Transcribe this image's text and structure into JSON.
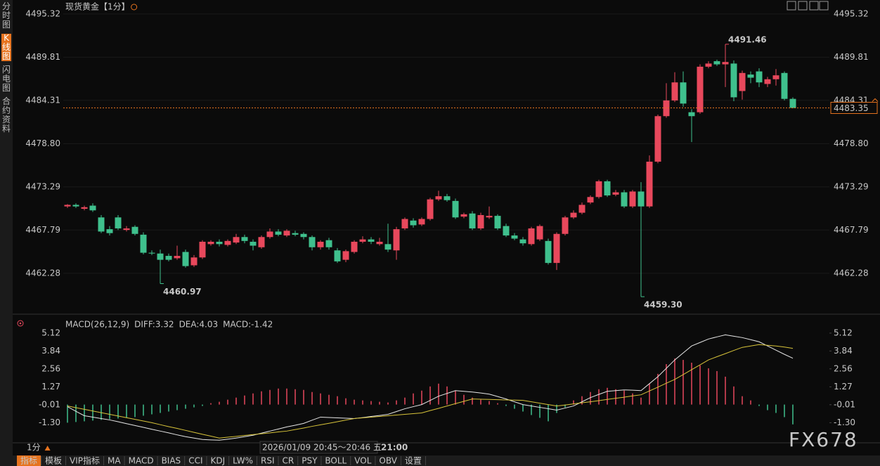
{
  "sidebar": [
    "分时图",
    "K线图",
    "闪电图",
    "合约资料"
  ],
  "chart_data": [
    {
      "type": "candlestick",
      "title": "现货黄金",
      "interval": "【1分】",
      "up_color": "#e8485c",
      "down_color": "#3fc08d",
      "ylim": [
        4457.7,
        4496.2
      ],
      "yticks": [
        4462.28,
        4467.79,
        4473.29,
        {
          "value": 4478.8,
          "label": "4478.80"
        },
        4484.31,
        4489.81,
        4495.32
      ],
      "grid": true,
      "last_price": 4483.35,
      "annotations": {
        "values": [
          4491.46,
          4460.97,
          4459.3
        ],
        "value_labels": [
          "4491.46",
          "4460.97",
          "4459.30"
        ]
      },
      "candles": [
        [
          4470.8,
          4471.1,
          4470.6,
          4471.0
        ],
        [
          4471.0,
          4471.2,
          4470.6,
          4470.8
        ],
        [
          4470.5,
          4470.9,
          4470.3,
          4470.7
        ],
        [
          4470.9,
          4471.2,
          4470.1,
          4470.3
        ],
        [
          4469.4,
          4469.7,
          4467.4,
          4467.6
        ],
        [
          4467.9,
          4468.3,
          4467.1,
          4467.4
        ],
        [
          4469.4,
          4469.7,
          4467.8,
          4468.0
        ],
        [
          4467.8,
          4468.3,
          4467.6,
          4468.0
        ],
        [
          4468.2,
          4468.4,
          4467.1,
          4467.3
        ],
        [
          4467.2,
          4467.5,
          4464.7,
          4464.9
        ],
        [
          4464.9,
          4465.2,
          4464.6,
          4464.8
        ],
        [
          4464.8,
          4465.3,
          4460.97,
          4464.0
        ],
        [
          4464.5,
          4464.8,
          4463.8,
          4464.0
        ],
        [
          4464.2,
          4465.8,
          4464.0,
          4464.5
        ],
        [
          4465.0,
          4465.3,
          4463.0,
          4463.2
        ],
        [
          4463.3,
          4464.6,
          4463.1,
          4464.3
        ],
        [
          4464.3,
          4466.5,
          4464.1,
          4466.3
        ],
        [
          4466.0,
          4466.5,
          4465.8,
          4466.3
        ],
        [
          4466.3,
          4466.6,
          4465.7,
          4466.0
        ],
        [
          4465.9,
          4466.6,
          4465.7,
          4466.4
        ],
        [
          4466.2,
          4467.3,
          4466.0,
          4466.9
        ],
        [
          4466.9,
          4467.2,
          4466.1,
          4466.4
        ],
        [
          4466.3,
          4466.6,
          4465.2,
          4465.8
        ],
        [
          4465.6,
          4467.1,
          4465.4,
          4466.9
        ],
        [
          4466.9,
          4468.0,
          4466.7,
          4467.6
        ],
        [
          4467.6,
          4467.9,
          4467.0,
          4467.2
        ],
        [
          4467.1,
          4467.9,
          4466.9,
          4467.7
        ],
        [
          4467.4,
          4467.7,
          4467.0,
          4467.2
        ],
        [
          4467.3,
          4467.5,
          4466.6,
          4466.9
        ],
        [
          4466.9,
          4467.1,
          4465.2,
          4465.6
        ],
        [
          4465.6,
          4466.5,
          4465.3,
          4466.3
        ],
        [
          4466.5,
          4466.8,
          4465.3,
          4465.6
        ],
        [
          4465.2,
          4465.5,
          4463.6,
          4463.8
        ],
        [
          4464.0,
          4465.3,
          4463.7,
          4465.1
        ],
        [
          4465.0,
          4466.5,
          4464.8,
          4466.3
        ],
        [
          4466.3,
          4467.0,
          4466.1,
          4466.6
        ],
        [
          4466.6,
          4466.9,
          4466.0,
          4466.3
        ],
        [
          4466.0,
          4466.8,
          4465.8,
          4466.3
        ],
        [
          4466.0,
          4468.6,
          4465.0,
          4465.3
        ],
        [
          4465.2,
          4468.2,
          4464.0,
          4467.9
        ],
        [
          4468.0,
          4469.4,
          4467.8,
          4469.2
        ],
        [
          4469.0,
          4469.3,
          4468.1,
          4468.4
        ],
        [
          4468.5,
          4469.4,
          4468.3,
          4469.2
        ],
        [
          4469.2,
          4471.9,
          4469.0,
          4471.7
        ],
        [
          4471.7,
          4472.8,
          4471.5,
          4472.1
        ],
        [
          4472.1,
          4472.4,
          4471.4,
          4471.6
        ],
        [
          4471.5,
          4471.8,
          4469.2,
          4469.4
        ],
        [
          4469.5,
          4470.0,
          4469.3,
          4469.8
        ],
        [
          4469.9,
          4470.2,
          4467.8,
          4468.0
        ],
        [
          4468.0,
          4470.0,
          4467.8,
          4469.7
        ],
        [
          4469.4,
          4470.8,
          4469.2,
          4469.6
        ],
        [
          4469.6,
          4469.8,
          4467.8,
          4468.0
        ],
        [
          4468.3,
          4468.6,
          4466.9,
          4467.1
        ],
        [
          4467.1,
          4467.4,
          4466.5,
          4466.7
        ],
        [
          4466.6,
          4466.9,
          4465.8,
          4466.1
        ],
        [
          4466.0,
          4468.2,
          4465.8,
          4468.0
        ],
        [
          4466.6,
          4468.5,
          4466.4,
          4468.3
        ],
        [
          4466.4,
          4466.7,
          4463.4,
          4463.6
        ],
        [
          4463.6,
          4467.5,
          4462.7,
          4467.3
        ],
        [
          4467.3,
          4469.6,
          4467.1,
          4469.4
        ],
        [
          4469.4,
          4470.3,
          4469.2,
          4470.0
        ],
        [
          4470.0,
          4471.3,
          4469.8,
          4471.0
        ],
        [
          4471.3,
          4472.2,
          4471.1,
          4472.0
        ],
        [
          4472.0,
          4474.2,
          4471.8,
          4474.0
        ],
        [
          4474.0,
          4474.2,
          4472.0,
          4472.2
        ],
        [
          4472.3,
          4472.9,
          4472.1,
          4472.6
        ],
        [
          4472.6,
          4472.9,
          4470.6,
          4470.8
        ],
        [
          4470.8,
          4472.9,
          4470.6,
          4472.7
        ],
        [
          4472.7,
          4473.9,
          4459.3,
          4470.8
        ],
        [
          4470.8,
          4477.3,
          4470.6,
          4476.5
        ],
        [
          4476.5,
          4482.5,
          4476.3,
          4482.3
        ],
        [
          4482.3,
          4486.5,
          4482.1,
          4484.3
        ],
        [
          4484.3,
          4487.9,
          4484.1,
          4486.6
        ],
        [
          4486.6,
          4488.0,
          4483.5,
          4483.9
        ],
        [
          4482.8,
          4483.2,
          4479.0,
          4482.3
        ],
        [
          4482.8,
          4488.9,
          4482.6,
          4488.6
        ],
        [
          4488.6,
          4489.3,
          4488.4,
          4489.0
        ],
        [
          4489.3,
          4489.5,
          4488.7,
          4488.9
        ],
        [
          4488.9,
          4491.46,
          4486.0,
          4489.2
        ],
        [
          4489.0,
          4489.4,
          4484.2,
          4484.7
        ],
        [
          4485.5,
          4488.1,
          4484.4,
          4487.8
        ],
        [
          4487.6,
          4488.0,
          4486.5,
          4487.2
        ],
        [
          4488.0,
          4488.4,
          4486.0,
          4486.6
        ],
        [
          4486.4,
          4487.3,
          4486.0,
          4487.0
        ],
        [
          4487.0,
          4488.3,
          4486.2,
          4487.5
        ],
        [
          4487.8,
          4488.0,
          4484.3,
          4484.5
        ],
        [
          4484.5,
          4484.7,
          4483.3,
          4483.35
        ]
      ]
    },
    {
      "type": "macd",
      "legend": [
        {
          "text": "MACD(26,12,9)",
          "color": "#cccccc"
        },
        {
          "text": "DIFF:3.32",
          "color": "#e6e6e6"
        },
        {
          "text": "DEA:4.03",
          "color": "#d8c43a"
        },
        {
          "text": "MACD:-1.42",
          "color": "#d23fd2"
        }
      ],
      "ylim": [
        -2.69,
        5.42
      ],
      "yticks": [
        5.12,
        3.84,
        2.56,
        1.27,
        -0.01,
        {
          "value": -1.3,
          "label": "-1.30"
        }
      ],
      "diff": {
        "color": "#e6e6e6",
        "values": [
          -0.15,
          -0.48,
          -0.8,
          -0.9,
          -1.0,
          -1.1,
          -1.23,
          -1.37,
          -1.5,
          -1.63,
          -1.77,
          -1.9,
          -2.03,
          -2.17,
          -2.3,
          -2.4,
          -2.5,
          -2.53,
          -2.55,
          -2.48,
          -2.4,
          -2.3,
          -2.2,
          -2.05,
          -1.9,
          -1.75,
          -1.6,
          -1.48,
          -1.35,
          -1.12,
          -0.9,
          -0.93,
          -0.95,
          -0.98,
          -1.0,
          -0.93,
          -0.85,
          -0.78,
          -0.7,
          -0.5,
          -0.3,
          -0.15,
          0.0,
          0.3,
          0.6,
          0.8,
          1.0,
          0.95,
          0.9,
          0.83,
          0.75,
          0.58,
          0.4,
          0.2,
          0.0,
          -0.1,
          -0.2,
          -0.3,
          -0.4,
          -0.25,
          -0.1,
          0.2,
          0.5,
          0.73,
          0.95,
          1.0,
          1.05,
          1.03,
          1.0,
          1.5,
          2.0,
          2.6,
          3.2,
          3.7,
          4.2,
          4.45,
          4.7,
          4.85,
          5.0,
          4.9,
          4.8,
          4.65,
          4.5,
          4.2,
          3.9,
          3.6,
          3.32
        ]
      },
      "dea": {
        "color": "#d8c43a",
        "values": [
          -0.1,
          -0.22,
          -0.34,
          -0.46,
          -0.58,
          -0.7,
          -0.82,
          -0.94,
          -1.06,
          -1.18,
          -1.3,
          -1.44,
          -1.58,
          -1.71,
          -1.85,
          -1.99,
          -2.13,
          -2.26,
          -2.4,
          -2.34,
          -2.28,
          -2.21,
          -2.15,
          -2.09,
          -2.03,
          -1.96,
          -1.9,
          -1.79,
          -1.68,
          -1.56,
          -1.45,
          -1.34,
          -1.23,
          -1.11,
          -1.0,
          -0.95,
          -0.9,
          -0.85,
          -0.8,
          -0.75,
          -0.7,
          -0.65,
          -0.6,
          -0.43,
          -0.27,
          -0.1,
          0.07,
          0.23,
          0.4,
          0.38,
          0.37,
          0.35,
          0.33,
          0.32,
          0.3,
          0.2,
          0.1,
          0.0,
          -0.1,
          -0.03,
          0.05,
          0.13,
          0.2,
          0.28,
          0.37,
          0.45,
          0.53,
          0.62,
          0.7,
          0.98,
          1.25,
          1.53,
          1.8,
          2.15,
          2.5,
          2.85,
          3.2,
          3.43,
          3.65,
          3.88,
          4.1,
          4.2,
          4.3,
          4.25,
          4.2,
          4.12,
          4.03
        ]
      },
      "hist": {
        "up_color": "#e8485c",
        "down_color": "#3fc08d",
        "values": [
          -1.3,
          -1.25,
          -1.2,
          -1.15,
          -1.1,
          -1.05,
          -1.0,
          -0.95,
          -0.9,
          -0.8,
          -0.7,
          -0.6,
          -0.5,
          -0.4,
          -0.3,
          -0.2,
          -0.1,
          0.1,
          0.2,
          0.35,
          0.5,
          0.65,
          0.8,
          0.95,
          1.05,
          1.15,
          1.15,
          1.1,
          1.05,
          0.9,
          0.8,
          0.7,
          0.6,
          0.45,
          0.35,
          0.3,
          0.25,
          0.2,
          0.15,
          0.3,
          0.5,
          0.8,
          1.0,
          1.3,
          1.5,
          1.3,
          1.0,
          0.7,
          0.5,
          0.35,
          0.25,
          0.1,
          -0.1,
          -0.3,
          -0.5,
          -0.75,
          -0.95,
          -1.2,
          -0.6,
          -0.2,
          0.3,
          0.6,
          0.9,
          1.1,
          1.2,
          1.1,
          1.0,
          0.8,
          0.5,
          1.5,
          2.2,
          2.9,
          3.3,
          3.2,
          3.0,
          2.8,
          2.6,
          2.4,
          2.0,
          1.3,
          0.6,
          0.3,
          -0.1,
          -0.4,
          -0.6,
          -0.9,
          -1.42
        ]
      }
    }
  ],
  "footer": {
    "interval": "1分",
    "cursor_time": "2026/01/09 20:45～20:46 五",
    "time_tick": "21:00"
  },
  "toolbar": [
    "指标",
    "模板",
    "VIP指标",
    "MA",
    "MACD",
    "BIAS",
    "CCI",
    "KDJ",
    "LW%",
    "RSI",
    "CR",
    "PSY",
    "BOLL",
    "VOL",
    "OBV",
    "设置"
  ],
  "watermark": "FX678"
}
